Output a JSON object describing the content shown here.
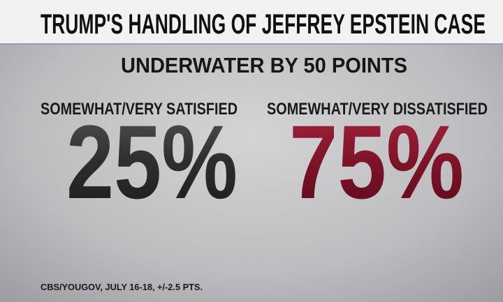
{
  "title": "TRUMP'S HANDLING OF JEFFREY EPSTEIN CASE",
  "subtitle": "UNDERWATER BY 50 POINTS",
  "stats": [
    {
      "label": "SOMEWHAT/VERY SATISFIED",
      "value": "25%"
    },
    {
      "label": "SOMEWHAT/VERY DISSATISFIED",
      "value": "75%"
    }
  ],
  "source": "CBS/YOUGOV, JULY 16-18, +/-2.5 PTS."
}
